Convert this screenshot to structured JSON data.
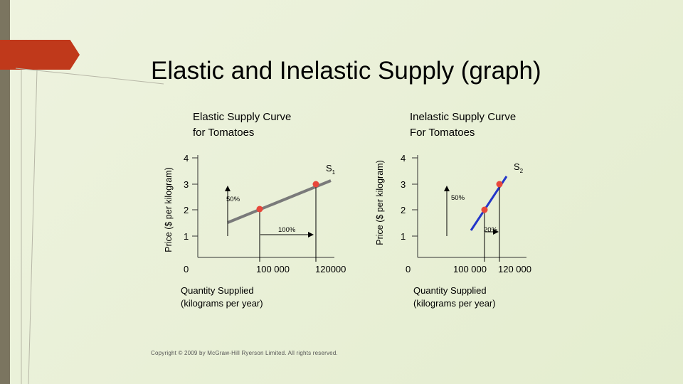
{
  "slide": {
    "title": "Elastic and Inelastic Supply (graph)",
    "copyright": "Copyright © 2009 by McGraw-Hill Ryerson Limited. All rights reserved.",
    "accent_color": "#c0391b",
    "bar_color": "#7b7560"
  },
  "left_chart": {
    "title_line1": "Elastic Supply Curve",
    "title_line2": "for Tomatoes",
    "ylabel": "Price ($ per kilogram)",
    "xlabel_line1": "Quantity Supplied",
    "xlabel_line2": "(kilograms per year)",
    "y_ticks": [
      "4",
      "3",
      "2",
      "1"
    ],
    "x_ticks": [
      "0",
      "100 000",
      "120000"
    ],
    "curve_label": "S",
    "curve_subscript": "1",
    "price_change_label": "50%",
    "quantity_change_label": "100%"
  },
  "right_chart": {
    "title_line1": "Inelastic Supply Curve",
    "title_line2": "For Tomatoes",
    "ylabel": "Price ($ per kilogram)",
    "xlabel_line1": "Quantity Supplied",
    "xlabel_line2": "(kilograms per year)",
    "y_ticks": [
      "4",
      "3",
      "2",
      "1"
    ],
    "x_ticks": [
      "0",
      "100 000",
      "120 000"
    ],
    "curve_label": "S",
    "curve_subscript": "2",
    "price_change_label": "50%",
    "quantity_change_label": "20%"
  },
  "chart_data": [
    {
      "type": "line",
      "title": "Elastic Supply Curve for Tomatoes",
      "xlabel": "Quantity Supplied (kilograms per year)",
      "ylabel": "Price ($ per kilogram)",
      "series": [
        {
          "name": "S1",
          "x": [
            60000,
            120000
          ],
          "y": [
            1.9,
            3.1
          ]
        }
      ],
      "points": [
        {
          "x": 60000,
          "y": 2
        },
        {
          "x": 120000,
          "y": 3
        }
      ],
      "x_ticks": [
        0,
        100000,
        120000
      ],
      "y_ticks": [
        1,
        2,
        3,
        4
      ],
      "annotations": [
        "50%",
        "100%"
      ],
      "line_color": "#7a7a7a",
      "point_color": "#e8473b"
    },
    {
      "type": "line",
      "title": "Inelastic Supply Curve For Tomatoes",
      "xlabel": "Quantity Supplied (kilograms per year)",
      "ylabel": "Price ($ per kilogram)",
      "series": [
        {
          "name": "S2",
          "x": [
            96000,
            122000
          ],
          "y": [
            1.2,
            3.1
          ]
        }
      ],
      "points": [
        {
          "x": 100000,
          "y": 2
        },
        {
          "x": 120000,
          "y": 3
        }
      ],
      "x_ticks": [
        0,
        100000,
        120000
      ],
      "y_ticks": [
        1,
        2,
        3,
        4
      ],
      "annotations": [
        "50%",
        "20%"
      ],
      "line_color": "#2436c9",
      "point_color": "#e8473b"
    }
  ]
}
